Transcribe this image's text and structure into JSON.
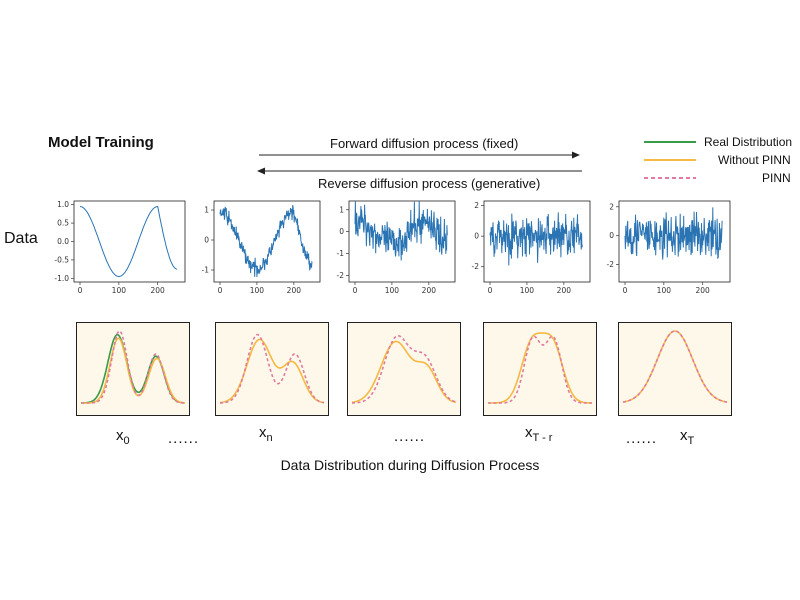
{
  "title": "Model Training",
  "forward_label": "Forward diffusion process (fixed)",
  "reverse_label": "Reverse diffusion process (generative)",
  "legend": {
    "real": "Real Distribution",
    "without_pinn": "Without PINN",
    "pinn": "PINN"
  },
  "colors": {
    "real": "#3a9a4a",
    "without_pinn": "#f5b942",
    "pinn": "#e07aa0",
    "series": "#2a74b4",
    "panel_bg": "#fdf8ea"
  },
  "data_label": "Data",
  "stages": {
    "x0": {
      "base": "x",
      "sub": "0"
    },
    "xn": {
      "base": "x",
      "sub": "n"
    },
    "xtr": {
      "base": "x",
      "sub": "T - r"
    },
    "xt": {
      "base": "x",
      "sub": "T"
    }
  },
  "ellipsis": "......",
  "caption": "Data Distribution during Diffusion Process",
  "chart_data": [
    {
      "type": "line",
      "x_ticks": [
        "0",
        "100",
        "200"
      ],
      "y_ticks": [
        "1.0",
        "0.5",
        "0.0",
        "-0.5",
        "-1.0"
      ],
      "ylim": [
        -1.1,
        1.1
      ],
      "noise": 0.0
    },
    {
      "type": "line",
      "x_ticks": [
        "0",
        "100",
        "200"
      ],
      "y_ticks": [
        "1",
        "0",
        "-1"
      ],
      "ylim": [
        -1.4,
        1.3
      ],
      "noise": 0.18
    },
    {
      "type": "line",
      "x_ticks": [
        "0",
        "100",
        "200"
      ],
      "y_ticks": [
        "1",
        "0",
        "-1",
        "-2"
      ],
      "ylim": [
        -2.3,
        1.4
      ],
      "noise": 0.6
    },
    {
      "type": "line",
      "x_ticks": [
        "0",
        "100",
        "200"
      ],
      "y_ticks": [
        "2",
        "0",
        "-2"
      ],
      "ylim": [
        -3.0,
        2.3
      ],
      "noise": 1.0
    },
    {
      "type": "line",
      "x_ticks": [
        "0",
        "100",
        "200"
      ],
      "y_ticks": [
        "2",
        "0",
        "-2"
      ],
      "ylim": [
        -3.2,
        2.4
      ],
      "noise": 1.1
    }
  ]
}
